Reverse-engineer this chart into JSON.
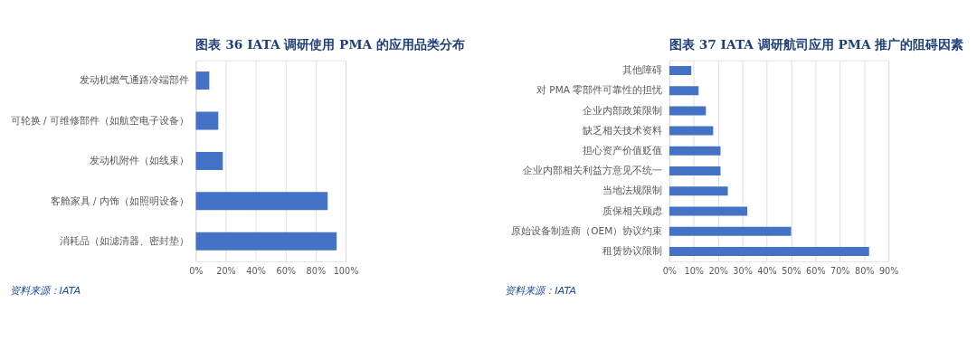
{
  "chart_data": [
    {
      "type": "bar",
      "orientation": "horizontal",
      "title": "图表 36   IATA 调研使用 PMA 的应用品类分布",
      "categories": [
        "发动机燃气通路冷端部件",
        "可轮换 / 可维修部件（如航空电子设备）",
        "发动机附件（如线束）",
        "客舱家具 / 内饰（如照明设备）",
        "消耗品（如滤清器、密封垫）"
      ],
      "values": [
        9,
        15,
        18,
        88,
        94
      ],
      "color": "#4472c4",
      "xlim": [
        0,
        100
      ],
      "xticks": [
        {
          "value": 0,
          "label": "0%"
        },
        {
          "value": 20,
          "label": "20%"
        },
        {
          "value": 40,
          "label": "40%"
        },
        {
          "value": 60,
          "label": "60%"
        },
        {
          "value": 80,
          "label": "80%"
        },
        {
          "value": 100,
          "label": "100%"
        }
      ],
      "grid": "x",
      "legend": false,
      "annotations": [
        "资料来源：IATA"
      ]
    },
    {
      "type": "bar",
      "orientation": "horizontal",
      "title": "图表 37   IATA 调研航司应用 PMA 推广的阻碍因素",
      "categories": [
        "其他障碍",
        "对 PMA 零部件可靠性的担忧",
        "企业内部政策限制",
        "缺乏相关技术资料",
        "担心资产价值贬值",
        "企业内部相关利益方意见不统一",
        "当地法规限制",
        "质保相关顾虑",
        "原始设备制造商（OEM）协议约束",
        "租赁协议限制"
      ],
      "values": [
        9,
        12,
        15,
        18,
        21,
        21,
        24,
        32,
        50,
        82
      ],
      "color": "#4472c4",
      "xlim": [
        0,
        90
      ],
      "xticks": [
        {
          "value": 0,
          "label": "0%"
        },
        {
          "value": 10,
          "label": "10%"
        },
        {
          "value": 20,
          "label": "20%"
        },
        {
          "value": 30,
          "label": "30%"
        },
        {
          "value": 40,
          "label": "40%"
        },
        {
          "value": 50,
          "label": "50%"
        },
        {
          "value": 60,
          "label": "60%"
        },
        {
          "value": 70,
          "label": "70%"
        },
        {
          "value": 80,
          "label": "80%"
        },
        {
          "value": 90,
          "label": "90%"
        }
      ],
      "grid": "x",
      "legend": false,
      "annotations": [
        "资料来源：IATA"
      ]
    }
  ]
}
